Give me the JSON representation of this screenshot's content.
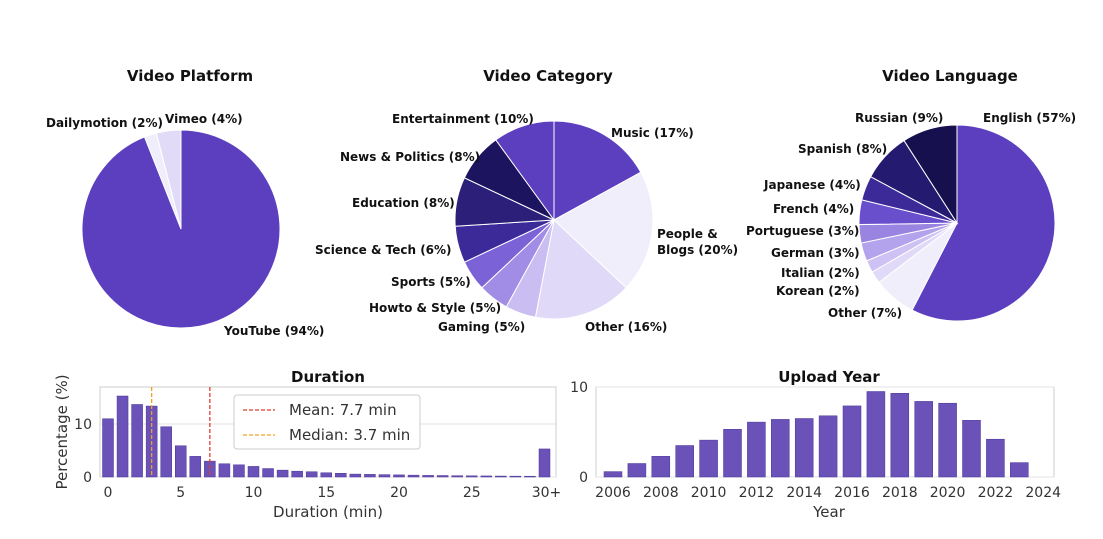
{
  "chart_data": [
    {
      "type": "pie",
      "title": "Video Platform",
      "slices": [
        {
          "label": "YouTube (94%)",
          "value": 94,
          "color": "#5b3fbf"
        },
        {
          "label": "Dailymotion (2%)",
          "value": 2,
          "color": "#f1eefc"
        },
        {
          "label": "Vimeo (4%)",
          "value": 4,
          "color": "#e1dbf8"
        }
      ]
    },
    {
      "type": "pie",
      "title": "Video Category",
      "slices": [
        {
          "label": "Music (17%)",
          "value": 17,
          "color": "#5b3fbf"
        },
        {
          "label": "People & Blogs (20%)",
          "value": 20,
          "color": "#f1eefc"
        },
        {
          "label": "Other (16%)",
          "value": 16,
          "color": "#e0daf8"
        },
        {
          "label": "Gaming (5%)",
          "value": 5,
          "color": "#c9bdf2"
        },
        {
          "label": "Howto & Style (5%)",
          "value": 5,
          "color": "#a18ce6"
        },
        {
          "label": "Sports (5%)",
          "value": 5,
          "color": "#7b62d6"
        },
        {
          "label": "Science & Tech (6%)",
          "value": 6,
          "color": "#3d2a99"
        },
        {
          "label": "Education (8%)",
          "value": 8,
          "color": "#2b1f7a"
        },
        {
          "label": "News & Politics (8%)",
          "value": 8,
          "color": "#1d1460"
        },
        {
          "label": "Entertainment (10%)",
          "value": 10,
          "color": "#5b3fbf"
        }
      ]
    },
    {
      "type": "pie",
      "title": "Video Language",
      "slices": [
        {
          "label": "English (57%)",
          "value": 57,
          "color": "#5b3fbf"
        },
        {
          "label": "Other (7%)",
          "value": 7,
          "color": "#f1eefc"
        },
        {
          "label": "Korean (2%)",
          "value": 2,
          "color": "#e0daf8"
        },
        {
          "label": "Italian (2%)",
          "value": 2,
          "color": "#cdc2f3"
        },
        {
          "label": "German (3%)",
          "value": 3,
          "color": "#b3a3ec"
        },
        {
          "label": "Portuguese (3%)",
          "value": 3,
          "color": "#9a84e2"
        },
        {
          "label": "French (4%)",
          "value": 4,
          "color": "#6a4fcc"
        },
        {
          "label": "Japanese (4%)",
          "value": 4,
          "color": "#3d2a99"
        },
        {
          "label": "Spanish (8%)",
          "value": 8,
          "color": "#241a70"
        },
        {
          "label": "Russian (9%)",
          "value": 9,
          "color": "#17104f"
        }
      ]
    },
    {
      "type": "bar",
      "title": "Duration",
      "xlabel": "Duration (min)",
      "ylabel": "Percentage (%)",
      "categories": [
        0,
        1,
        2,
        3,
        4,
        5,
        6,
        7,
        8,
        9,
        10,
        11,
        12,
        13,
        14,
        15,
        16,
        17,
        18,
        19,
        20,
        21,
        22,
        23,
        24,
        25,
        26,
        27,
        28,
        29,
        "30+"
      ],
      "values": [
        11,
        15.3,
        13.7,
        13.4,
        9.5,
        5.9,
        3.9,
        3.0,
        2.5,
        2.3,
        2.0,
        1.6,
        1.3,
        1.1,
        1.0,
        0.8,
        0.7,
        0.55,
        0.5,
        0.45,
        0.4,
        0.35,
        0.3,
        0.28,
        0.25,
        0.22,
        0.2,
        0.18,
        0.16,
        0.15,
        5.3
      ],
      "xticks": [
        "0",
        "5",
        "10",
        "15",
        "20",
        "25",
        "30+"
      ],
      "yticks": [
        "0",
        "10"
      ],
      "ylim": [
        0,
        17
      ],
      "lines": [
        {
          "label": "Mean: 7.7 min",
          "value": 7.7,
          "color": "#e03c2c"
        },
        {
          "label": "Median: 3.7 min",
          "value": 3.7,
          "color": "#f0a020"
        }
      ]
    },
    {
      "type": "bar",
      "title": "Upload Year",
      "xlabel": "Year",
      "categories": [
        2006,
        2007,
        2008,
        2009,
        2010,
        2011,
        2012,
        2013,
        2014,
        2015,
        2016,
        2017,
        2018,
        2019,
        2020,
        2021,
        2022,
        2023
      ],
      "values": [
        0.6,
        1.5,
        2.3,
        3.5,
        4.1,
        5.3,
        6.1,
        6.4,
        6.5,
        6.8,
        7.9,
        9.5,
        9.3,
        8.4,
        8.2,
        6.3,
        4.2,
        1.6
      ],
      "xticks": [
        "2006",
        "2008",
        "2010",
        "2012",
        "2014",
        "2016",
        "2018",
        "2020",
        "2022",
        "2024"
      ],
      "yticks": [
        "0",
        "10"
      ],
      "ylim": [
        0,
        10
      ]
    }
  ],
  "colors": {
    "bar": "#6a52b8",
    "bar_edge": "#4b3596",
    "grid": "#e3e3e3",
    "spine": "#cccccc"
  }
}
